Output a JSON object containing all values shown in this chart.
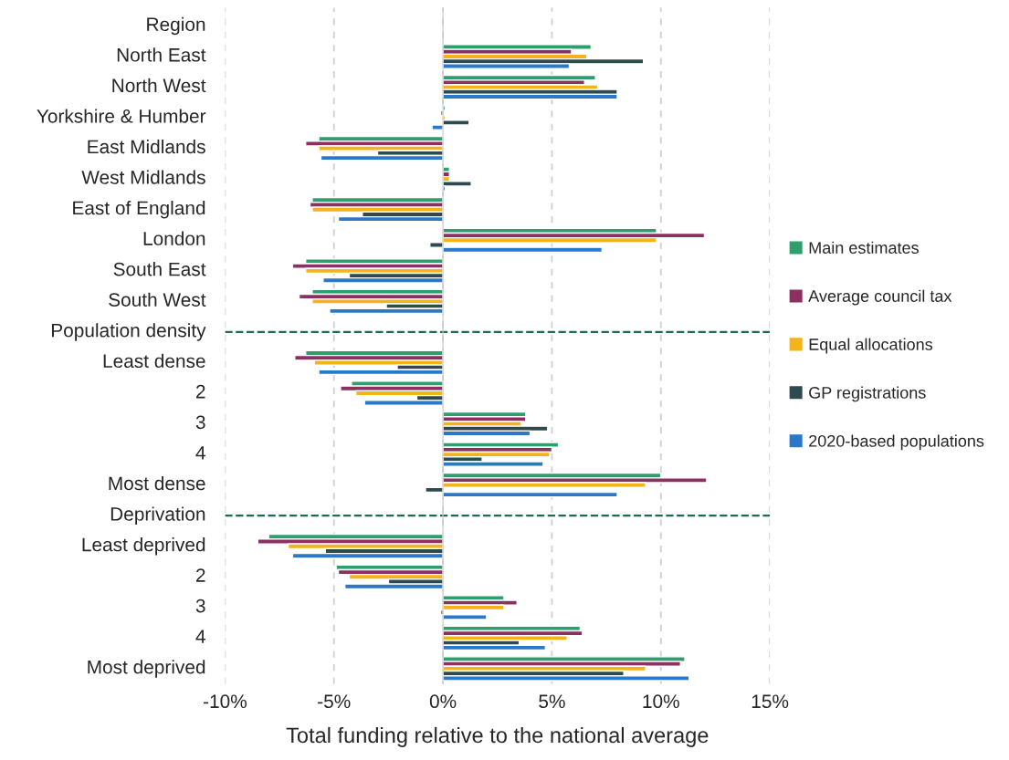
{
  "chart_data": {
    "type": "bar",
    "orientation": "horizontal",
    "xlabel": "Total funding relative to the national average",
    "categories": [
      "Region",
      "North East",
      "North West",
      "Yorkshire & Humber",
      "East Midlands",
      "West Midlands",
      "East of England",
      "London",
      "South East",
      "South West",
      "Population density",
      "Least dense",
      "2",
      "3",
      "4",
      "Most dense",
      "Deprivation",
      "Least deprived",
      "2",
      "3",
      "4",
      "Most deprived"
    ],
    "series": [
      {
        "name": "Main estimates",
        "color": "#2e9e6e",
        "values": [
          null,
          6.8,
          7.0,
          0.1,
          -5.7,
          0.3,
          -6.0,
          9.8,
          -6.3,
          -6.0,
          null,
          -6.3,
          -4.2,
          3.8,
          5.3,
          10.0,
          null,
          -8.0,
          -4.9,
          2.8,
          6.3,
          11.1
        ]
      },
      {
        "name": "Average council tax",
        "color": "#8b3060",
        "values": [
          null,
          5.9,
          6.5,
          -0.1,
          -6.3,
          0.3,
          -6.1,
          12.0,
          -6.9,
          -6.6,
          null,
          -6.8,
          -4.7,
          3.8,
          5.0,
          12.1,
          null,
          -8.5,
          -4.8,
          3.4,
          6.4,
          10.9
        ]
      },
      {
        "name": "Equal allocations",
        "color": "#f2b31b",
        "values": [
          null,
          6.6,
          7.1,
          0.1,
          -5.7,
          0.3,
          -6.0,
          9.8,
          -6.3,
          -6.0,
          null,
          -5.9,
          -4.0,
          3.6,
          4.9,
          9.3,
          null,
          -7.1,
          -4.3,
          2.8,
          5.7,
          9.3
        ]
      },
      {
        "name": "GP registrations",
        "color": "#2f4a4f",
        "values": [
          null,
          9.2,
          8.0,
          1.2,
          -3.0,
          1.3,
          -3.7,
          -0.6,
          -4.3,
          -2.6,
          null,
          -2.1,
          -1.2,
          4.8,
          1.8,
          -0.8,
          null,
          -5.4,
          -2.5,
          -0.1,
          3.5,
          8.3
        ]
      },
      {
        "name": "2020-based populations",
        "color": "#2a78c8",
        "values": [
          null,
          5.8,
          8.0,
          -0.5,
          -5.6,
          0.1,
          -4.8,
          7.3,
          -5.5,
          -5.2,
          null,
          -5.7,
          -3.6,
          4.0,
          4.6,
          8.0,
          null,
          -6.9,
          -4.5,
          2.0,
          4.7,
          11.3
        ]
      }
    ],
    "xlim": [
      -10,
      15
    ],
    "xticks": [
      {
        "value": -10,
        "label": "-10%"
      },
      {
        "value": -5,
        "label": "-5%"
      },
      {
        "value": 0,
        "label": "0%"
      },
      {
        "value": 5,
        "label": "5%"
      },
      {
        "value": 10,
        "label": "10%"
      },
      {
        "value": 15,
        "label": "15%"
      }
    ],
    "ref_lines": [
      {
        "axis": "y",
        "value": "Population density",
        "color": "#1e6b4f",
        "line_style": "dashed"
      },
      {
        "axis": "y",
        "value": "Deprivation",
        "color": "#1e6b4f",
        "line_style": "dashed"
      }
    ],
    "grid": "x",
    "legend": "right"
  }
}
